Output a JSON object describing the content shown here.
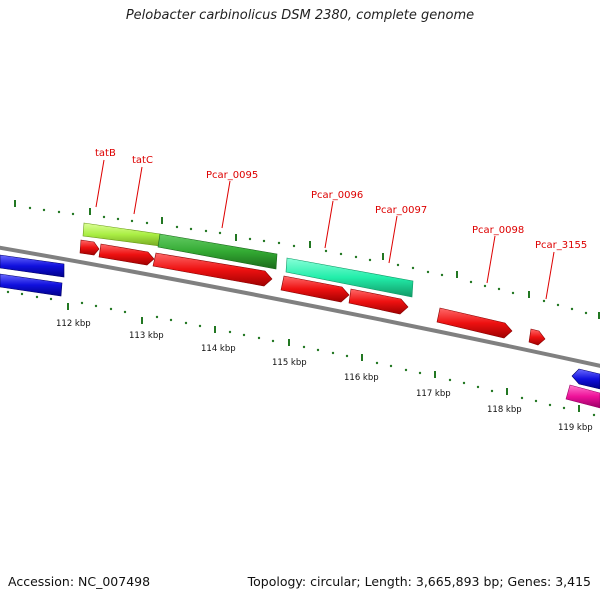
{
  "title": "Pelobacter carbinolicus DSM 2380, complete genome",
  "footer": {
    "accession": "Accession: NC_007498",
    "stats": "Topology: circular; Length: 3,665,893 bp; Genes: 3,415"
  },
  "genes": [
    {
      "name": "tatB",
      "color": "#cc0000"
    },
    {
      "name": "tatC",
      "color": "#cc0000"
    },
    {
      "name": "Pcar_0095",
      "color": "#cc0000"
    },
    {
      "name": "Pcar_0096",
      "color": "#cc0000"
    },
    {
      "name": "Pcar_0097",
      "color": "#cc0000"
    },
    {
      "name": "Pcar_0098",
      "color": "#cc0000"
    },
    {
      "name": "Pcar_3155",
      "color": "#cc0000"
    }
  ],
  "scale_labels": [
    "112 kbp",
    "113 kbp",
    "114 kbp",
    "115 kbp",
    "116 kbp",
    "117 kbp",
    "118 kbp",
    "119 kbp"
  ],
  "colors": {
    "backbone": "#808080",
    "tick": "#227722",
    "cds": "#ee1111",
    "blue_feature": "#1010dd",
    "lime_feature": "#aaee44",
    "green_feature": "#33aa33",
    "teal_feature": "#22eeaa",
    "pink_feature": "#ee1199"
  }
}
